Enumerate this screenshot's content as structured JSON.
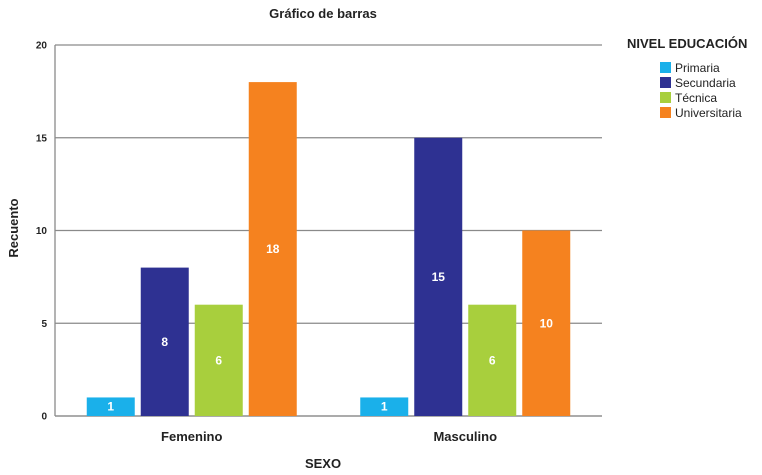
{
  "chart_data": {
    "type": "bar",
    "title": "Gráfico de barras",
    "xlabel": "SEXO",
    "ylabel": "Recuento",
    "ylim": [
      0,
      20
    ],
    "yticks": [
      0,
      5,
      10,
      15,
      20
    ],
    "grid": true,
    "legend_title": "NIVEL EDUCACIÓN",
    "legend_position": "top-right",
    "categories": [
      "Femenino",
      "Masculino"
    ],
    "series": [
      {
        "name": "Primaria",
        "color": "#1ab0ea",
        "values": [
          1,
          1
        ]
      },
      {
        "name": "Secundaria",
        "color": "#2e3192",
        "values": [
          8,
          15
        ]
      },
      {
        "name": "Técnica",
        "color": "#a8cf3d",
        "values": [
          6,
          6
        ]
      },
      {
        "name": "Universitaria",
        "color": "#f5821f",
        "values": [
          18,
          10
        ]
      }
    ]
  }
}
